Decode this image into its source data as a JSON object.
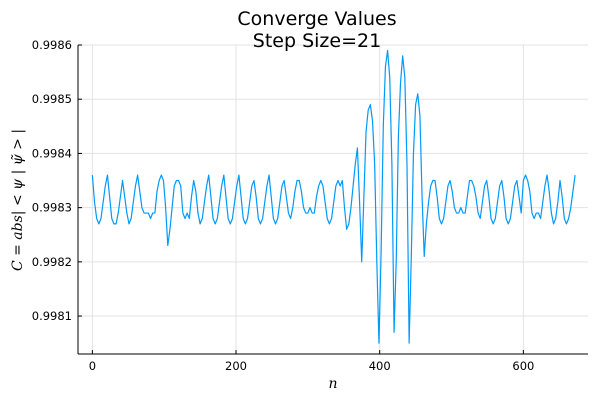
{
  "chart_data": {
    "type": "line",
    "title": "Converge Values",
    "subtitle": "Step Size=21",
    "xlabel": "n",
    "ylabel": "C = abs| < ψ | ψ̃ > |",
    "xlim": [
      -20,
      690
    ],
    "ylim": [
      0.99803,
      0.9986
    ],
    "xticks": [
      0,
      200,
      400,
      600
    ],
    "xtick_labels": [
      "0",
      "200",
      "400",
      "600"
    ],
    "yticks": [
      0.9981,
      0.9982,
      0.9983,
      0.9984,
      0.9985,
      0.9986
    ],
    "ytick_labels": [
      "0.9981",
      "0.9982",
      "0.9983",
      "0.9984",
      "0.9985",
      "0.9986"
    ],
    "grid": true,
    "legend": "none",
    "series": [
      {
        "color": "#009af9",
        "points": [
          [
            0,
            0.99836
          ],
          [
            3,
            0.99831
          ],
          [
            6,
            0.99828
          ],
          [
            9,
            0.99827
          ],
          [
            12,
            0.99828
          ],
          [
            15,
            0.99831
          ],
          [
            18,
            0.99834
          ],
          [
            21,
            0.99836
          ],
          [
            24,
            0.99832
          ],
          [
            27,
            0.99828
          ],
          [
            30,
            0.99827
          ],
          [
            33,
            0.99827
          ],
          [
            36,
            0.99829
          ],
          [
            39,
            0.99832
          ],
          [
            42,
            0.99835
          ],
          [
            45,
            0.99832
          ],
          [
            48,
            0.99829
          ],
          [
            51,
            0.99827
          ],
          [
            54,
            0.99828
          ],
          [
            57,
            0.99831
          ],
          [
            60,
            0.99834
          ],
          [
            63,
            0.99836
          ],
          [
            66,
            0.99833
          ],
          [
            69,
            0.9983
          ],
          [
            72,
            0.99829
          ],
          [
            75,
            0.99829
          ],
          [
            78,
            0.99829
          ],
          [
            81,
            0.99828
          ],
          [
            84,
            0.99829
          ],
          [
            87,
            0.99829
          ],
          [
            90,
            0.99833
          ],
          [
            93,
            0.99835
          ],
          [
            96,
            0.99836
          ],
          [
            99,
            0.99835
          ],
          [
            102,
            0.9983
          ],
          [
            105,
            0.99823
          ],
          [
            108,
            0.99826
          ],
          [
            111,
            0.9983
          ],
          [
            114,
            0.99834
          ],
          [
            117,
            0.99835
          ],
          [
            120,
            0.99835
          ],
          [
            123,
            0.99834
          ],
          [
            126,
            0.99829
          ],
          [
            129,
            0.99828
          ],
          [
            132,
            0.99829
          ],
          [
            135,
            0.99828
          ],
          [
            138,
            0.99832
          ],
          [
            141,
            0.99835
          ],
          [
            144,
            0.99833
          ],
          [
            147,
            0.99829
          ],
          [
            150,
            0.99827
          ],
          [
            153,
            0.99828
          ],
          [
            156,
            0.99831
          ],
          [
            159,
            0.99834
          ],
          [
            162,
            0.99836
          ],
          [
            165,
            0.99832
          ],
          [
            168,
            0.99828
          ],
          [
            171,
            0.99827
          ],
          [
            174,
            0.99828
          ],
          [
            177,
            0.99831
          ],
          [
            180,
            0.99834
          ],
          [
            183,
            0.99836
          ],
          [
            186,
            0.99832
          ],
          [
            189,
            0.99828
          ],
          [
            192,
            0.99827
          ],
          [
            195,
            0.99828
          ],
          [
            198,
            0.99831
          ],
          [
            201,
            0.99834
          ],
          [
            204,
            0.99836
          ],
          [
            207,
            0.99832
          ],
          [
            210,
            0.99828
          ],
          [
            213,
            0.99827
          ],
          [
            216,
            0.99828
          ],
          [
            219,
            0.99831
          ],
          [
            222,
            0.99834
          ],
          [
            225,
            0.99835
          ],
          [
            228,
            0.99832
          ],
          [
            231,
            0.99828
          ],
          [
            234,
            0.99827
          ],
          [
            237,
            0.99828
          ],
          [
            240,
            0.99831
          ],
          [
            243,
            0.99834
          ],
          [
            246,
            0.99836
          ],
          [
            249,
            0.99832
          ],
          [
            252,
            0.99828
          ],
          [
            255,
            0.99827
          ],
          [
            258,
            0.99828
          ],
          [
            261,
            0.99831
          ],
          [
            264,
            0.99834
          ],
          [
            267,
            0.99835
          ],
          [
            270,
            0.99832
          ],
          [
            273,
            0.99829
          ],
          [
            276,
            0.99828
          ],
          [
            279,
            0.9983
          ],
          [
            282,
            0.99833
          ],
          [
            285,
            0.99835
          ],
          [
            288,
            0.99835
          ],
          [
            291,
            0.99833
          ],
          [
            294,
            0.9983
          ],
          [
            297,
            0.99829
          ],
          [
            300,
            0.99829
          ],
          [
            303,
            0.9983
          ],
          [
            306,
            0.99829
          ],
          [
            309,
            0.99829
          ],
          [
            312,
            0.99832
          ],
          [
            315,
            0.99834
          ],
          [
            318,
            0.99835
          ],
          [
            321,
            0.99834
          ],
          [
            324,
            0.99831
          ],
          [
            327,
            0.99828
          ],
          [
            330,
            0.99827
          ],
          [
            333,
            0.99828
          ],
          [
            336,
            0.99831
          ],
          [
            339,
            0.99834
          ],
          [
            342,
            0.99835
          ],
          [
            345,
            0.99834
          ],
          [
            348,
            0.99835
          ],
          [
            351,
            0.9983
          ],
          [
            354,
            0.99826
          ],
          [
            357,
            0.99827
          ],
          [
            360,
            0.9983
          ],
          [
            363,
            0.99834
          ],
          [
            366,
            0.99838
          ],
          [
            369,
            0.99841
          ],
          [
            372,
            0.99831
          ],
          [
            375,
            0.9982
          ],
          [
            378,
            0.99832
          ],
          [
            381,
            0.99844
          ],
          [
            384,
            0.99848
          ],
          [
            387,
            0.99849
          ],
          [
            390,
            0.99846
          ],
          [
            393,
            0.99838
          ],
          [
            396,
            0.9982
          ],
          [
            399,
            0.99805
          ],
          [
            402,
            0.99822
          ],
          [
            405,
            0.99845
          ],
          [
            408,
            0.99856
          ],
          [
            411,
            0.99859
          ],
          [
            414,
            0.99854
          ],
          [
            417,
            0.99838
          ],
          [
            420,
            0.99807
          ],
          [
            423,
            0.9982
          ],
          [
            426,
            0.99843
          ],
          [
            429,
            0.99853
          ],
          [
            432,
            0.99858
          ],
          [
            435,
            0.99854
          ],
          [
            438,
            0.99838
          ],
          [
            441,
            0.99805
          ],
          [
            444,
            0.99821
          ],
          [
            447,
            0.9984
          ],
          [
            450,
            0.99849
          ],
          [
            453,
            0.99851
          ],
          [
            456,
            0.99847
          ],
          [
            459,
            0.99832
          ],
          [
            462,
            0.99821
          ],
          [
            465,
            0.99827
          ],
          [
            468,
            0.99831
          ],
          [
            471,
            0.99834
          ],
          [
            474,
            0.99835
          ],
          [
            477,
            0.99835
          ],
          [
            480,
            0.99832
          ],
          [
            483,
            0.99828
          ],
          [
            486,
            0.99827
          ],
          [
            489,
            0.99828
          ],
          [
            492,
            0.99831
          ],
          [
            495,
            0.99834
          ],
          [
            498,
            0.99835
          ],
          [
            501,
            0.99833
          ],
          [
            504,
            0.9983
          ],
          [
            507,
            0.99829
          ],
          [
            510,
            0.99829
          ],
          [
            513,
            0.9983
          ],
          [
            516,
            0.99829
          ],
          [
            519,
            0.99829
          ],
          [
            522,
            0.99832
          ],
          [
            525,
            0.99835
          ],
          [
            528,
            0.99835
          ],
          [
            531,
            0.99834
          ],
          [
            534,
            0.99832
          ],
          [
            537,
            0.99829
          ],
          [
            540,
            0.99828
          ],
          [
            543,
            0.99831
          ],
          [
            546,
            0.99834
          ],
          [
            549,
            0.99835
          ],
          [
            552,
            0.99832
          ],
          [
            555,
            0.99828
          ],
          [
            558,
            0.99827
          ],
          [
            561,
            0.99828
          ],
          [
            564,
            0.99831
          ],
          [
            567,
            0.99834
          ],
          [
            570,
            0.99835
          ],
          [
            573,
            0.99832
          ],
          [
            576,
            0.99828
          ],
          [
            579,
            0.99827
          ],
          [
            582,
            0.99828
          ],
          [
            585,
            0.99831
          ],
          [
            588,
            0.99834
          ],
          [
            591,
            0.99835
          ],
          [
            594,
            0.99832
          ],
          [
            597,
            0.99829
          ],
          [
            600,
            0.99835
          ],
          [
            603,
            0.99836
          ],
          [
            606,
            0.99835
          ],
          [
            609,
            0.99833
          ],
          [
            612,
            0.99829
          ],
          [
            615,
            0.99828
          ],
          [
            618,
            0.99829
          ],
          [
            621,
            0.99829
          ],
          [
            624,
            0.99828
          ],
          [
            627,
            0.99831
          ],
          [
            630,
            0.99834
          ],
          [
            633,
            0.99836
          ],
          [
            636,
            0.99833
          ],
          [
            639,
            0.99829
          ],
          [
            642,
            0.99827
          ],
          [
            645,
            0.99828
          ],
          [
            648,
            0.99831
          ],
          [
            651,
            0.99835
          ],
          [
            654,
            0.99832
          ],
          [
            657,
            0.99828
          ],
          [
            660,
            0.99827
          ],
          [
            663,
            0.99828
          ],
          [
            666,
            0.9983
          ],
          [
            669,
            0.99833
          ],
          [
            672,
            0.99836
          ]
        ]
      }
    ]
  }
}
